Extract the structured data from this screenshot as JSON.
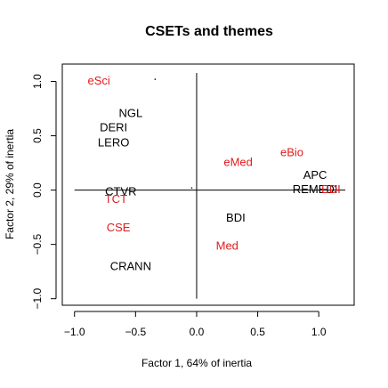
{
  "chart_data": {
    "type": "scatter",
    "title": "CSETs and themes",
    "x_label": "Factor 1, 64% of inertia",
    "y_label": "Factor 2, 29% of inertia",
    "labels": [
      "eSci",
      null,
      "NGL",
      "DERI",
      "LERO",
      "eMed",
      "eBio",
      "APC",
      "REMEDI",
      "EDI",
      "CTVR",
      "TCT",
      "CSE",
      "BDI",
      "Med",
      "CRANN",
      null
    ],
    "x": [
      -0.8,
      -0.34,
      -0.54,
      -0.68,
      -0.68,
      0.34,
      0.78,
      0.97,
      0.97,
      1.1,
      -0.62,
      -0.66,
      -0.64,
      0.32,
      0.25,
      -0.54,
      -0.04
    ],
    "values": [
      1.0,
      1.02,
      0.7,
      0.57,
      0.43,
      0.25,
      0.34,
      0.13,
      0.0,
      0.0,
      -0.02,
      -0.09,
      -0.35,
      -0.26,
      -0.52,
      -0.71,
      0.02
    ],
    "colors": [
      "#e41a1c",
      "#000000",
      "#000000",
      "#000000",
      "#000000",
      "#e41a1c",
      "#e41a1c",
      "#000000",
      "#000000",
      "#e41a1c",
      "#000000",
      "#e41a1c",
      "#e41a1c",
      "#000000",
      "#e41a1c",
      "#000000",
      "#000000"
    ],
    "xlim": [
      -1.1,
      1.29
    ],
    "ylim": [
      -1.06,
      1.16
    ],
    "xticks": [
      {
        "value": -1,
        "label": "−1.0"
      },
      {
        "value": -0.5,
        "label": "−0.5"
      },
      {
        "value": 0,
        "label": "0.0"
      },
      {
        "value": 0.5,
        "label": "0.5"
      },
      {
        "value": 1,
        "label": "1.0"
      }
    ],
    "yticks": [
      {
        "value": -1,
        "label": "−1.0"
      },
      {
        "value": -0.5,
        "label": "−0.5"
      },
      {
        "value": 0,
        "label": "0.0"
      },
      {
        "value": 0.5,
        "label": "0.5"
      },
      {
        "value": 1,
        "label": "1.0"
      }
    ]
  }
}
